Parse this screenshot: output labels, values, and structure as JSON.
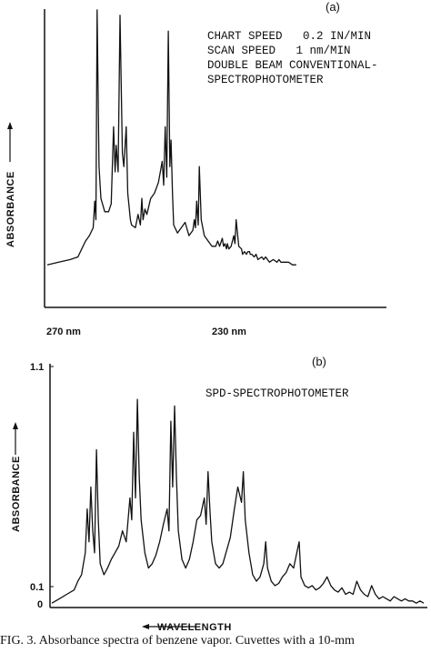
{
  "chart_data": [
    {
      "type": "line",
      "panel_label": "(a)",
      "ylabel": "ABSORBANCE",
      "x_ticks": [
        "270 nm",
        "230 nm"
      ],
      "annotation": [
        "CHART SPEED   0.2 IN/MIN",
        "SCAN SPEED   1 nm/MIN",
        "DOUBLE BEAM CONVENTIONAL-",
        "SPECTROPHOTOMETER"
      ],
      "xlim": [
        279,
        213
      ],
      "ylim": [
        0,
        1.0
      ],
      "x": [
        279,
        276,
        273,
        271,
        270,
        269,
        268,
        267,
        266.6,
        266.3,
        266,
        265.5,
        265,
        264,
        263,
        262.3,
        261.7,
        261.3,
        261,
        260.5,
        260,
        259.4,
        259,
        258.4,
        258,
        257.3,
        257,
        256,
        255.3,
        254.7,
        254.3,
        254,
        253.5,
        253,
        252,
        251,
        250,
        249,
        248.6,
        248.2,
        247.8,
        247.4,
        247,
        246.7,
        246.3,
        246,
        245,
        244,
        243,
        242,
        241,
        240.6,
        240.3,
        240,
        239.6,
        239.3,
        238.8,
        238,
        237,
        236,
        235,
        234.5,
        234,
        233.3,
        233,
        232.6,
        232.2,
        232,
        231.6,
        231,
        230.3,
        230,
        229.7,
        229,
        228.3,
        228,
        227.5,
        227,
        226.6,
        226.2,
        226,
        225.6,
        225,
        224.5,
        224,
        223,
        222.5,
        222,
        221,
        220,
        219,
        218.5,
        218,
        217,
        216,
        215,
        214
      ],
      "y": [
        0.03,
        0.04,
        0.05,
        0.06,
        0.09,
        0.12,
        0.14,
        0.17,
        0.27,
        0.2,
        0.99,
        0.4,
        0.28,
        0.23,
        0.23,
        0.26,
        0.55,
        0.38,
        0.48,
        0.38,
        0.97,
        0.45,
        0.4,
        0.55,
        0.3,
        0.2,
        0.18,
        0.17,
        0.22,
        0.18,
        0.28,
        0.2,
        0.24,
        0.22,
        0.28,
        0.3,
        0.34,
        0.42,
        0.33,
        0.55,
        0.36,
        0.91,
        0.4,
        0.5,
        0.3,
        0.18,
        0.15,
        0.17,
        0.19,
        0.14,
        0.16,
        0.2,
        0.17,
        0.27,
        0.18,
        0.4,
        0.2,
        0.14,
        0.12,
        0.1,
        0.1,
        0.12,
        0.1,
        0.13,
        0.1,
        0.11,
        0.09,
        0.11,
        0.09,
        0.1,
        0.14,
        0.11,
        0.2,
        0.1,
        0.09,
        0.07,
        0.08,
        0.07,
        0.08,
        0.08,
        0.07,
        0.07,
        0.06,
        0.07,
        0.05,
        0.06,
        0.05,
        0.06,
        0.04,
        0.05,
        0.04,
        0.05,
        0.04,
        0.04,
        0.04,
        0.03,
        0.03
      ]
    },
    {
      "type": "line",
      "panel_label": "(b)",
      "ylabel": "ABSORBANCE",
      "xlabel": "WAVELENGTH",
      "title": "SPD-SPECTROPHOTOMETER",
      "y_ticks": [
        "0",
        "0.1",
        "1.1"
      ],
      "xlim": [
        0,
        100
      ],
      "ylim": [
        0,
        1.1
      ],
      "x": [
        0,
        2,
        4,
        6,
        7,
        8,
        9,
        9.5,
        10,
        10.5,
        11,
        11.5,
        12,
        12.5,
        13,
        14,
        15,
        16,
        17,
        18,
        19,
        20,
        21,
        21.5,
        22,
        22.5,
        23,
        23.5,
        24,
        25,
        26,
        27,
        28,
        29,
        30,
        31,
        31.5,
        32,
        32.5,
        33,
        33.5,
        34,
        35,
        36,
        37,
        38,
        39,
        40,
        41,
        41.5,
        42,
        42.5,
        43,
        44,
        45,
        46,
        47,
        48,
        49,
        50,
        51,
        51.5,
        52,
        53,
        54,
        55,
        56,
        57,
        57.5,
        58,
        59,
        60,
        61,
        62,
        63,
        64,
        65,
        66,
        66.5,
        67,
        68,
        69,
        70,
        71,
        72,
        73,
        74,
        75,
        76,
        77,
        78,
        79,
        80,
        81,
        82,
        83,
        84,
        85,
        86,
        87,
        88,
        89,
        90,
        91,
        92,
        93,
        94,
        95,
        96,
        97,
        98,
        99,
        100
      ],
      "y": [
        0.02,
        0.04,
        0.06,
        0.08,
        0.12,
        0.15,
        0.25,
        0.45,
        0.3,
        0.55,
        0.35,
        0.25,
        0.72,
        0.4,
        0.2,
        0.15,
        0.18,
        0.22,
        0.25,
        0.28,
        0.35,
        0.3,
        0.5,
        0.4,
        0.8,
        0.5,
        0.95,
        0.6,
        0.4,
        0.25,
        0.18,
        0.2,
        0.24,
        0.3,
        0.38,
        0.45,
        0.35,
        0.85,
        0.55,
        0.92,
        0.6,
        0.35,
        0.22,
        0.18,
        0.22,
        0.3,
        0.4,
        0.42,
        0.5,
        0.38,
        0.62,
        0.45,
        0.3,
        0.2,
        0.18,
        0.2,
        0.26,
        0.32,
        0.44,
        0.55,
        0.48,
        0.62,
        0.4,
        0.25,
        0.15,
        0.12,
        0.14,
        0.2,
        0.3,
        0.18,
        0.12,
        0.1,
        0.11,
        0.14,
        0.16,
        0.2,
        0.18,
        0.26,
        0.3,
        0.14,
        0.1,
        0.09,
        0.1,
        0.08,
        0.09,
        0.11,
        0.14,
        0.1,
        0.08,
        0.07,
        0.09,
        0.06,
        0.07,
        0.06,
        0.12,
        0.08,
        0.06,
        0.05,
        0.1,
        0.06,
        0.04,
        0.05,
        0.04,
        0.03,
        0.05,
        0.04,
        0.03,
        0.04,
        0.03,
        0.03,
        0.02,
        0.03,
        0.02
      ]
    }
  ],
  "caption": "FIG. 3. Absorbance spectra of benzene vapor. Cuvettes with a 10-mm"
}
